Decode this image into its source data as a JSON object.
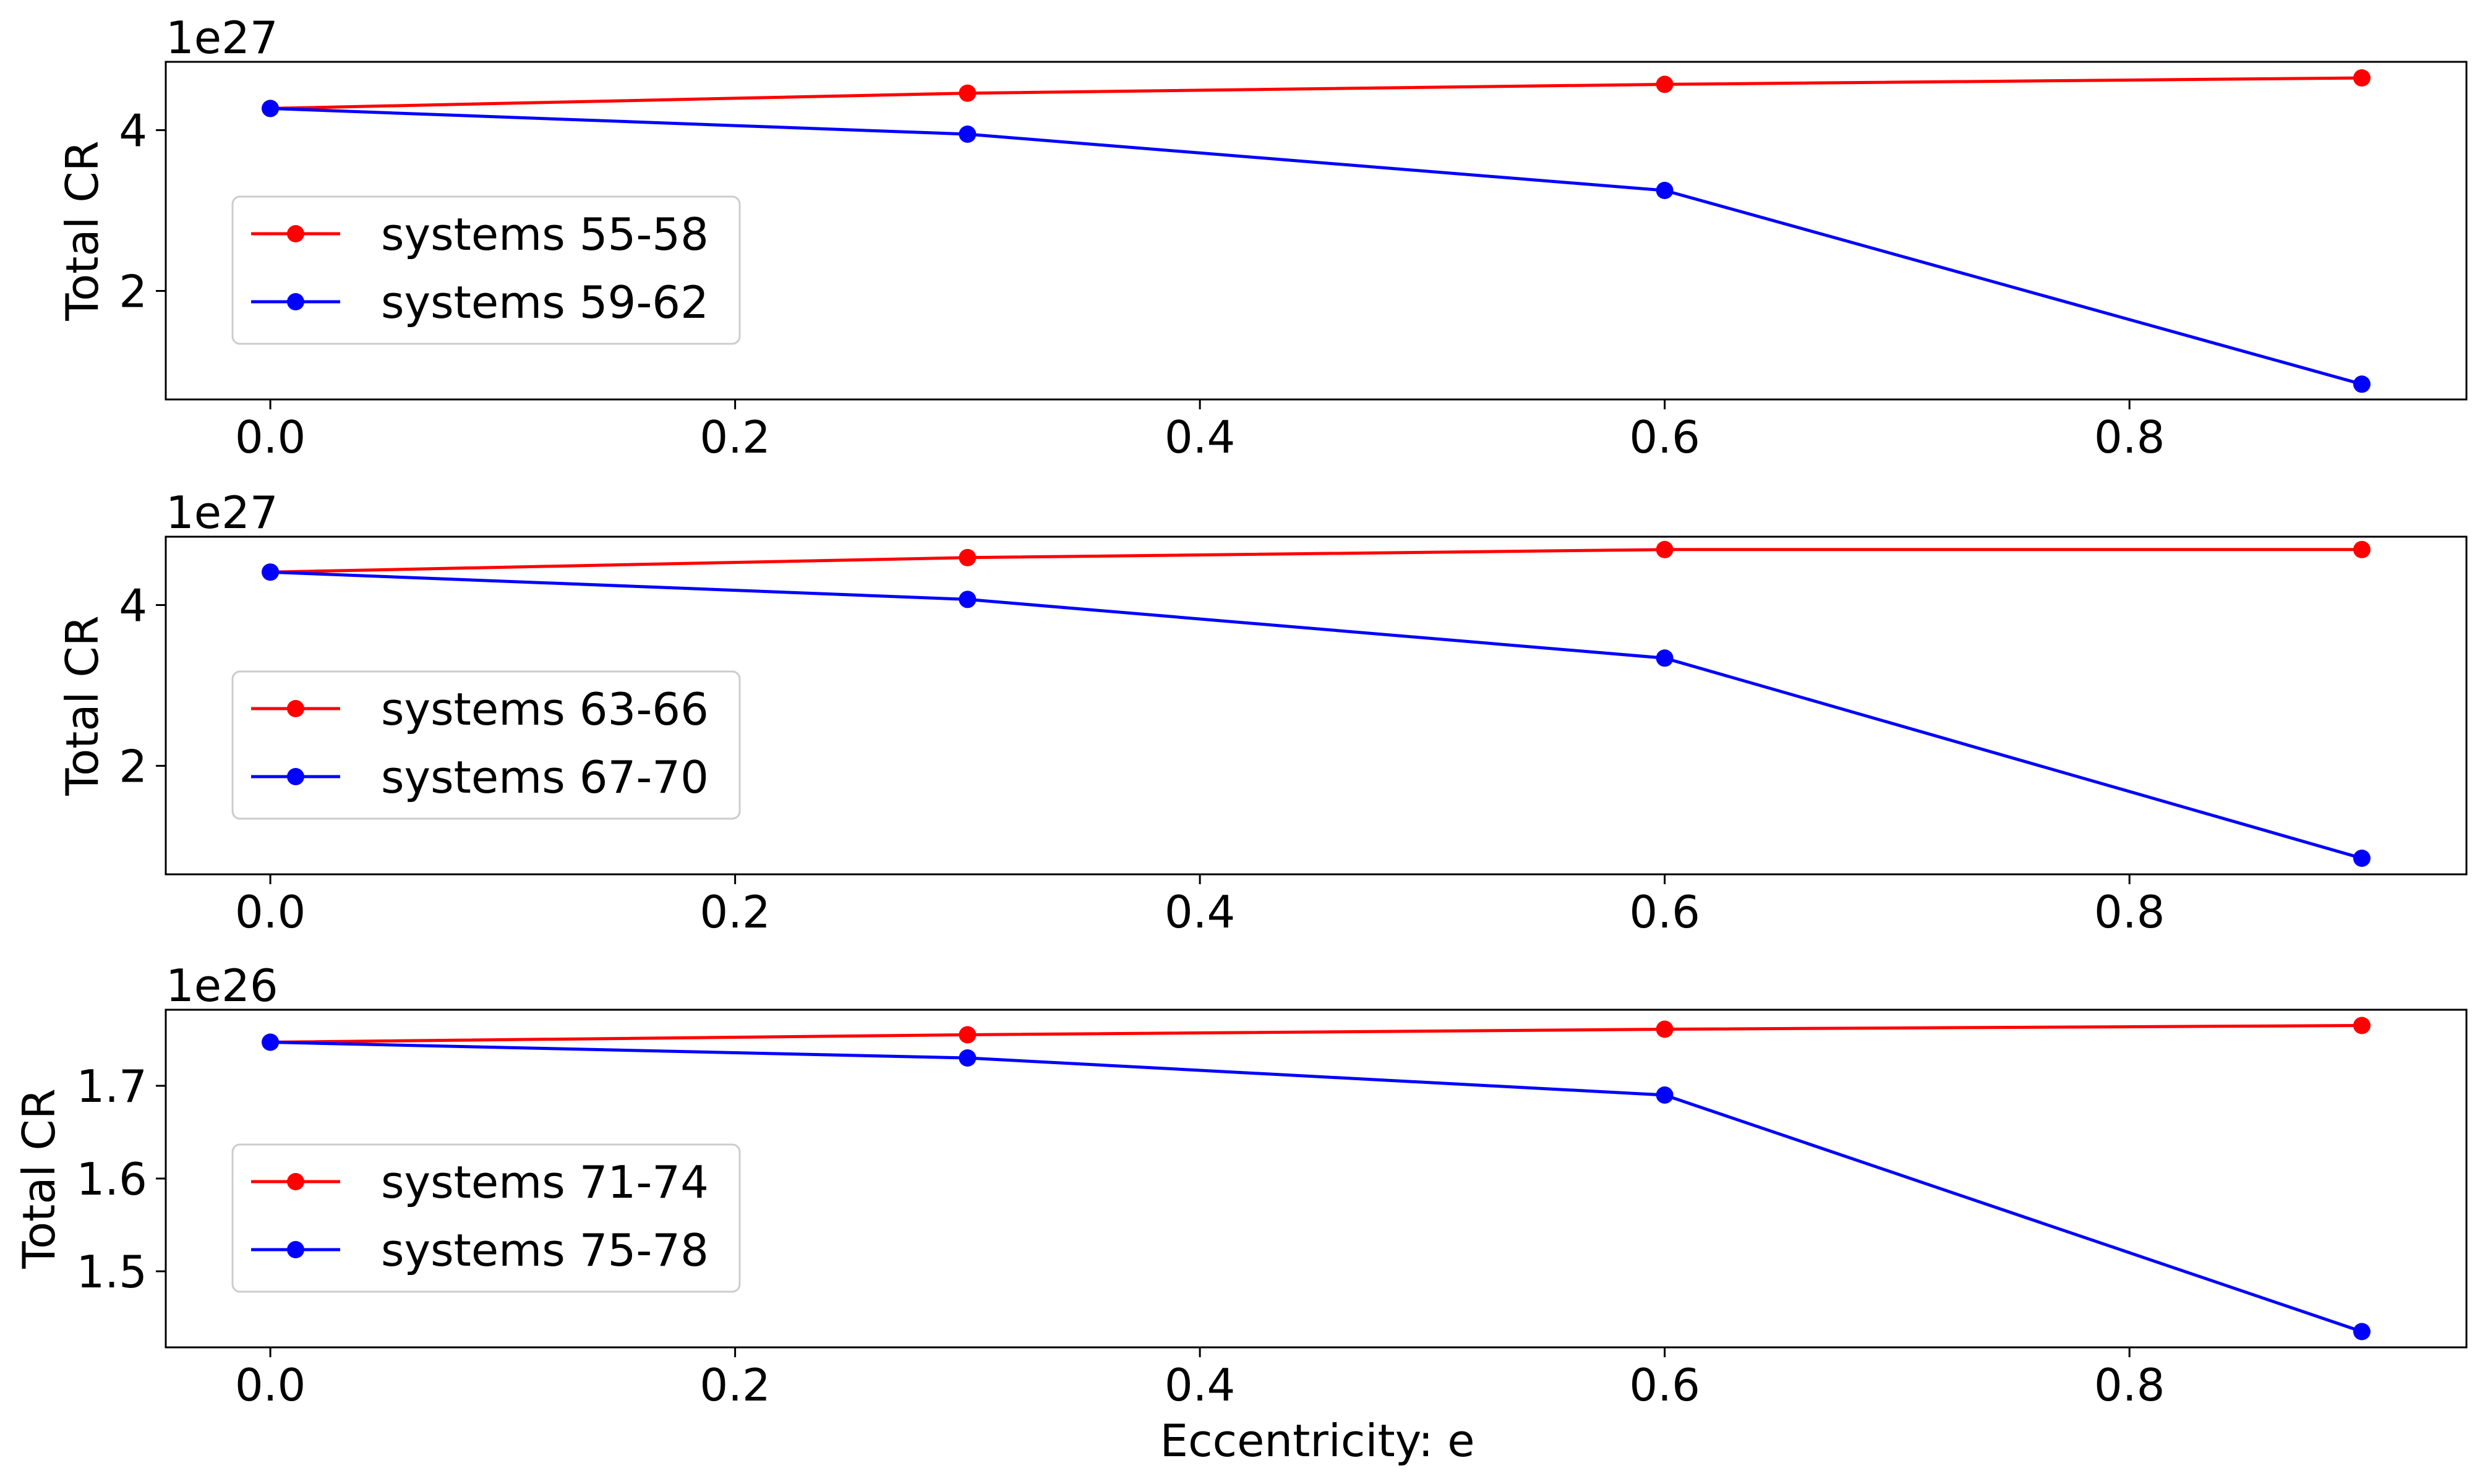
{
  "figure": {
    "xlabel": "Eccentricity: e"
  },
  "colors": {
    "series_a": "#ff0000",
    "series_b": "#0000ff",
    "axes": "#000000",
    "legend_border": "#cccccc"
  },
  "chart_data": [
    {
      "type": "line",
      "ylabel": "Total CR",
      "offset_text": "1e27",
      "scale": 1e+27,
      "xlim": [
        -0.045,
        0.945
      ],
      "ylim": [
        0.65,
        4.85
      ],
      "xticks": [
        0.0,
        0.2,
        0.4,
        0.6,
        0.8
      ],
      "xtick_labels": [
        "0.0",
        "0.2",
        "0.4",
        "0.6",
        "0.8"
      ],
      "yticks": [
        2,
        4
      ],
      "ytick_labels": [
        "2",
        "4"
      ],
      "x": [
        0.0,
        0.3,
        0.6,
        0.9
      ],
      "series": [
        {
          "name": "systems 55-58",
          "color": "#ff0000",
          "values": [
            4.27,
            4.46,
            4.57,
            4.65
          ]
        },
        {
          "name": "systems 59-62",
          "color": "#0000ff",
          "values": [
            4.27,
            3.95,
            3.25,
            0.84
          ]
        }
      ],
      "legend": "center-left"
    },
    {
      "type": "line",
      "ylabel": "Total CR",
      "offset_text": "1e27",
      "scale": 1e+27,
      "xlim": [
        -0.045,
        0.945
      ],
      "ylim": [
        0.65,
        4.85
      ],
      "xticks": [
        0.0,
        0.2,
        0.4,
        0.6,
        0.8
      ],
      "xtick_labels": [
        "0.0",
        "0.2",
        "0.4",
        "0.6",
        "0.8"
      ],
      "yticks": [
        2,
        4
      ],
      "ytick_labels": [
        "2",
        "4"
      ],
      "x": [
        0.0,
        0.3,
        0.6,
        0.9
      ],
      "series": [
        {
          "name": "systems 63-66",
          "color": "#ff0000",
          "values": [
            4.41,
            4.59,
            4.69,
            4.69
          ]
        },
        {
          "name": "systems 67-70",
          "color": "#0000ff",
          "values": [
            4.41,
            4.07,
            3.34,
            0.85
          ]
        }
      ],
      "legend": "center-left"
    },
    {
      "type": "line",
      "ylabel": "Total CR",
      "offset_text": "1e26",
      "scale": 1e+26,
      "xlim": [
        -0.045,
        0.945
      ],
      "ylim": [
        1.418,
        1.782
      ],
      "xticks": [
        0.0,
        0.2,
        0.4,
        0.6,
        0.8
      ],
      "xtick_labels": [
        "0.0",
        "0.2",
        "0.4",
        "0.6",
        "0.8"
      ],
      "yticks": [
        1.5,
        1.6,
        1.7
      ],
      "ytick_labels": [
        "1.5",
        "1.6",
        "1.7"
      ],
      "x": [
        0.0,
        0.3,
        0.6,
        0.9
      ],
      "series": [
        {
          "name": "systems 71-74",
          "color": "#ff0000",
          "values": [
            1.747,
            1.755,
            1.761,
            1.765
          ]
        },
        {
          "name": "systems 75-78",
          "color": "#0000ff",
          "values": [
            1.747,
            1.73,
            1.69,
            1.435
          ]
        }
      ],
      "legend": "center-left"
    }
  ]
}
